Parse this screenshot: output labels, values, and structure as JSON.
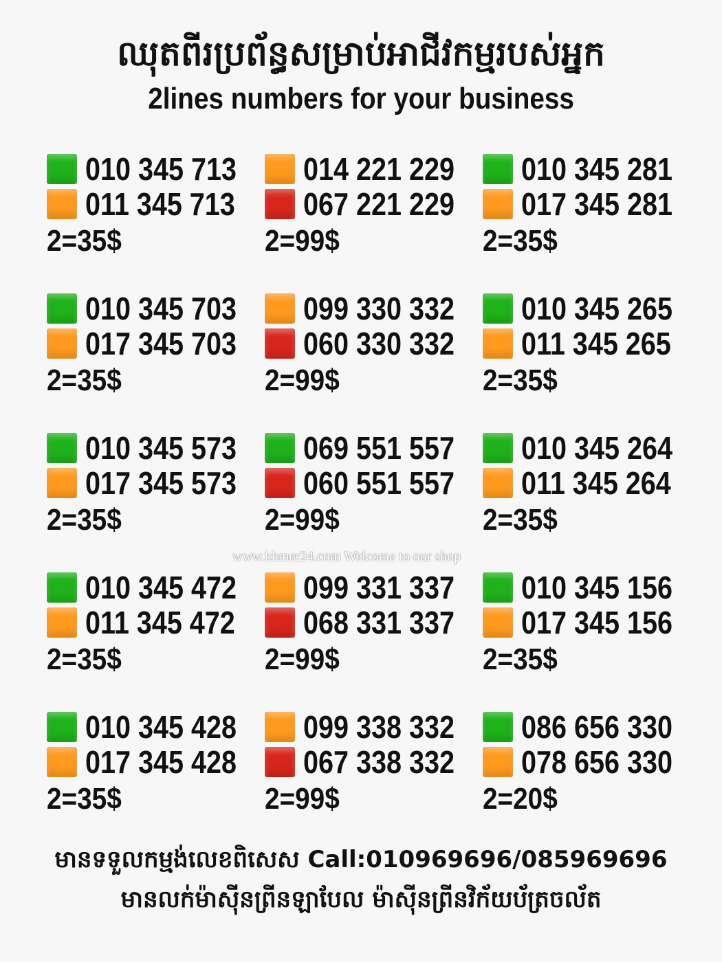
{
  "header": {
    "title_km": "ឈុតពីរប្រព័ន្ធសម្រាប់អាជីវកម្មរបស់អ្នក",
    "title_en": "2lines numbers for your business"
  },
  "colors": {
    "green": "#1fb21a",
    "orange": "#ff9a1f",
    "red": "#d8261c"
  },
  "offers": [
    {
      "lines": [
        {
          "number": "010 345 713",
          "color": "green"
        },
        {
          "number": "011 345 713",
          "color": "orange"
        }
      ],
      "price": "2=35$"
    },
    {
      "lines": [
        {
          "number": "014 221 229",
          "color": "orange"
        },
        {
          "number": "067 221 229",
          "color": "red"
        }
      ],
      "price": "2=99$"
    },
    {
      "lines": [
        {
          "number": "010 345 281",
          "color": "green"
        },
        {
          "number": "017 345 281",
          "color": "orange"
        }
      ],
      "price": "2=35$"
    },
    {
      "lines": [
        {
          "number": "010 345 703",
          "color": "green"
        },
        {
          "number": "017 345 703",
          "color": "orange"
        }
      ],
      "price": "2=35$"
    },
    {
      "lines": [
        {
          "number": "099 330 332",
          "color": "orange"
        },
        {
          "number": "060 330 332",
          "color": "red"
        }
      ],
      "price": "2=99$"
    },
    {
      "lines": [
        {
          "number": "010 345 265",
          "color": "green"
        },
        {
          "number": "011 345 265",
          "color": "orange"
        }
      ],
      "price": "2=35$"
    },
    {
      "lines": [
        {
          "number": "010 345 573",
          "color": "green"
        },
        {
          "number": "017 345 573",
          "color": "orange"
        }
      ],
      "price": "2=35$"
    },
    {
      "lines": [
        {
          "number": "069 551 557",
          "color": "green"
        },
        {
          "number": "060 551 557",
          "color": "red"
        }
      ],
      "price": "2=99$"
    },
    {
      "lines": [
        {
          "number": "010 345 264",
          "color": "green"
        },
        {
          "number": "011 345 264",
          "color": "orange"
        }
      ],
      "price": "2=35$"
    },
    {
      "lines": [
        {
          "number": "010 345 472",
          "color": "green"
        },
        {
          "number": "011 345 472",
          "color": "orange"
        }
      ],
      "price": "2=35$"
    },
    {
      "lines": [
        {
          "number": "099 331 337",
          "color": "orange"
        },
        {
          "number": "068 331 337",
          "color": "red"
        }
      ],
      "price": "2=99$"
    },
    {
      "lines": [
        {
          "number": "010 345 156",
          "color": "green"
        },
        {
          "number": "017 345 156",
          "color": "orange"
        }
      ],
      "price": "2=35$"
    },
    {
      "lines": [
        {
          "number": "010 345 428",
          "color": "green"
        },
        {
          "number": "017 345 428",
          "color": "orange"
        }
      ],
      "price": "2=35$"
    },
    {
      "lines": [
        {
          "number": "099 338 332",
          "color": "orange"
        },
        {
          "number": "067 338 332",
          "color": "red"
        }
      ],
      "price": "2=99$"
    },
    {
      "lines": [
        {
          "number": "086 656 330",
          "color": "green"
        },
        {
          "number": "078 656 330",
          "color": "orange"
        }
      ],
      "price": "2=20$"
    }
  ],
  "watermark": "www.khmer24.com Welcome to our shop",
  "footer": {
    "line1": "មានទទួលកម្មង់លេខពិសេស Call:010969696/085969696",
    "line2": "មានលក់ម៉ាស៊ីនព្រីនឡាបែល ម៉ាស៊ីនព្រីនវិក័យប័ត្រចល័ត"
  }
}
